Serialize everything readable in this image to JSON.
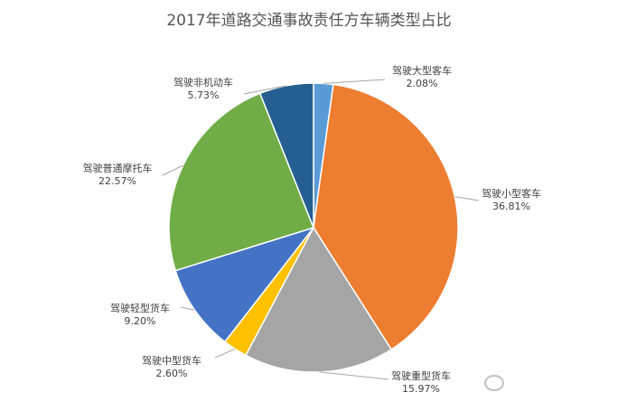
{
  "chart_data": {
    "type": "pie",
    "title": "2017年道路交通事故责任方车辆类型占比",
    "slices": [
      {
        "label": "驾驶大型客车",
        "value": 2.08,
        "value_label": "2.08%",
        "color": "#5b9bd5"
      },
      {
        "label": "驾驶小型客车",
        "value": 36.81,
        "value_label": "36.81%",
        "color": "#ed7d31"
      },
      {
        "label": "驾驶重型货车",
        "value": 15.97,
        "value_label": "15.97%",
        "color": "#a5a5a5"
      },
      {
        "label": "驾驶中型货车",
        "value": 2.6,
        "value_label": "2.60%",
        "color": "#ffc000"
      },
      {
        "label": "驾驶轻型货车",
        "value": 9.2,
        "value_label": "9.20%",
        "color": "#4472c4"
      },
      {
        "label": "驾驶普通摩托车",
        "value": 22.57,
        "value_label": "22.57%",
        "color": "#70ad47"
      },
      {
        "label": "驾驶非机动车",
        "value": 5.73,
        "value_label": "5.73%",
        "color": "#255e91"
      }
    ],
    "start_angle": "top (12 o'clock), clockwise",
    "legend": "none"
  }
}
